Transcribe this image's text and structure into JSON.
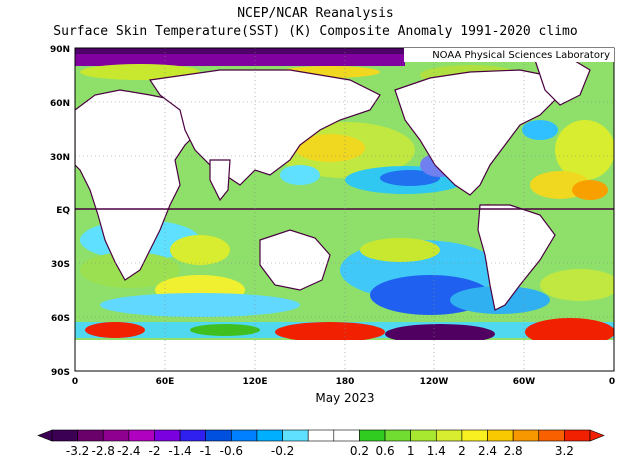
{
  "header": {
    "title": "NCEP/NCAR Reanalysis",
    "subtitle": "Surface Skin Temperature(SST) (K) Composite Anomaly 1991-2020 climo"
  },
  "credit": "NOAA Physical Sciences Laboratory",
  "period": "May 2023",
  "axes": {
    "lat_labels": [
      "90N",
      "60N",
      "30N",
      "EQ",
      "30S",
      "60S",
      "90S"
    ],
    "lon_labels": [
      "0",
      "60E",
      "120E",
      "180",
      "120W",
      "60W",
      "0"
    ]
  },
  "colorbar": {
    "labels": [
      "-3.2",
      "-2.8",
      "-2.4",
      "-2",
      "-1.4",
      "-1",
      "-0.6",
      "-0.2",
      "0.2",
      "0.6",
      "1",
      "1.4",
      "2",
      "2.4",
      "2.8",
      "3.2"
    ],
    "colors": [
      "#3b0054",
      "#6a006a",
      "#8f0090",
      "#b000c0",
      "#7a00e0",
      "#3020f0",
      "#0050e0",
      "#0080ff",
      "#00b0ff",
      "#60e0ff",
      "#ffffff",
      "#ffffff",
      "#30cc20",
      "#70dd30",
      "#a8e830",
      "#d8ec30",
      "#f8f020",
      "#f8c800",
      "#f89800",
      "#f86000",
      "#f02000"
    ]
  },
  "colors": {
    "land": "#ffffff",
    "coast": "#4a0040",
    "equator": "#4a0040"
  }
}
